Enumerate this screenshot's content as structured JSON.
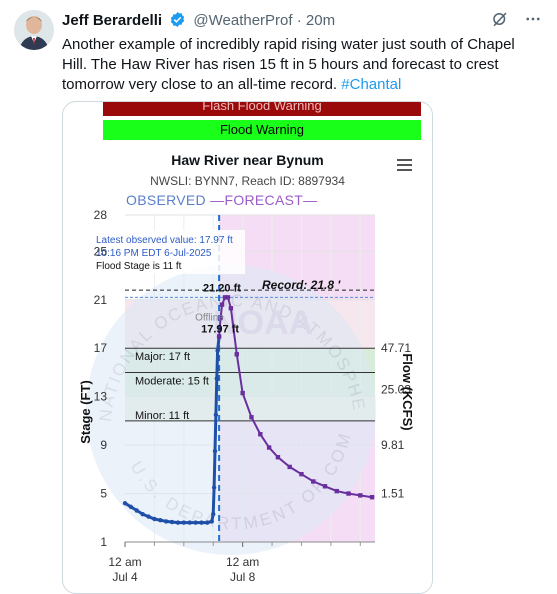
{
  "tweet": {
    "name": "Jeff Berardelli",
    "handle": "@WeatherProf",
    "time": "· 20m",
    "text": "Another example of incredibly rapid rising water just south of Chapel Hill. The Haw River has risen 15 ft in 5 hours and forecast to crest tomorrow very close to an all-time record.",
    "hashtag": "#Chantal",
    "icons": [
      "verified-badge-icon",
      "grok-icon",
      "more-icon"
    ]
  },
  "hydrograph": {
    "flash_warning": "Flash Flood Warning",
    "flood_warning": "Flood Warning",
    "title": "Haw River near Bynum",
    "subtitle": "NWSLI: BYNN7, Reach ID: 8897934",
    "legend_observed": "OBSERVED",
    "legend_forecast": "FORECAST",
    "tooltip_line1": "Latest observed value: 17.97 ft",
    "tooltip_line2": "10:16 PM EDT 6-Jul-2025",
    "tooltip_line3": "Flood Stage is 11 ft",
    "record_label": "Record: 21.8 '",
    "crest_label": "21.20 ft",
    "obs_label": "17.97 ft",
    "offline_label": "Offline",
    "major_label": "Major: 17 ft",
    "moderate_label": "Moderate: 15 ft",
    "minor_label": "Minor: 11 ft",
    "left_axis_title": "Stage (FT)",
    "right_axis_title": "Flow (KCFS)",
    "watermark_top": "NATIONAL OCEANIC AND ATMOSPHERIC ADMINISTRATION",
    "watermark_bottom": "U.S. DEPARTMENT OF COMMERCE",
    "watermark_logo": "NOAA",
    "colors": {
      "flash": "#9b0a0a",
      "flood": "#19ff19",
      "observed": "#1f4fa8",
      "forecast": "#6a2f9e",
      "major_band": "#f6e6ee",
      "moderate_band": "#d7ecd9",
      "minor_band": "#f2f2e2",
      "forecast_bg": "#f5def5"
    }
  },
  "chart_data": {
    "type": "line",
    "y_ticks": [
      "28",
      "25",
      "21",
      "17",
      "13",
      "9",
      "5",
      "1"
    ],
    "y2_ticks": [
      "47.71",
      "25.03",
      "9.81",
      "1.51"
    ],
    "x_ticks": [
      {
        "line1": "12 am",
        "line2": "Jul 4"
      },
      {
        "line1": "12 am",
        "line2": "Jul 8"
      }
    ],
    "ylim": [
      1,
      28
    ],
    "xlim": [
      0,
      8.5
    ],
    "flood_categories": {
      "minor": 11,
      "moderate": 15,
      "major": 17,
      "record": 21.8
    },
    "series": [
      {
        "name": "OBSERVED",
        "x": [
          0,
          0.2,
          0.4,
          0.6,
          0.8,
          1.0,
          1.2,
          1.4,
          1.6,
          1.8,
          2.0,
          2.2,
          2.4,
          2.6,
          2.8,
          2.95,
          3.0,
          3.03,
          3.06,
          3.09,
          3.12,
          3.15,
          3.2
        ],
        "values": [
          4.2,
          3.9,
          3.6,
          3.3,
          3.1,
          2.9,
          2.8,
          2.7,
          2.65,
          2.6,
          2.6,
          2.6,
          2.6,
          2.6,
          2.6,
          2.7,
          3.3,
          5.5,
          8.5,
          11.5,
          14.5,
          16.8,
          17.97
        ]
      },
      {
        "name": "FORECAST",
        "x": [
          3.2,
          3.25,
          3.3,
          3.4,
          3.5,
          3.6,
          3.8,
          4.0,
          4.3,
          4.6,
          4.9,
          5.2,
          5.6,
          6.0,
          6.4,
          6.8,
          7.2,
          7.6,
          8.0,
          8.4
        ],
        "values": [
          17.97,
          19.5,
          20.6,
          21.2,
          21.2,
          20.3,
          16.5,
          13.3,
          11.3,
          9.9,
          8.8,
          8.0,
          7.2,
          6.6,
          6.0,
          5.6,
          5.2,
          5.0,
          4.85,
          4.7
        ]
      }
    ]
  }
}
